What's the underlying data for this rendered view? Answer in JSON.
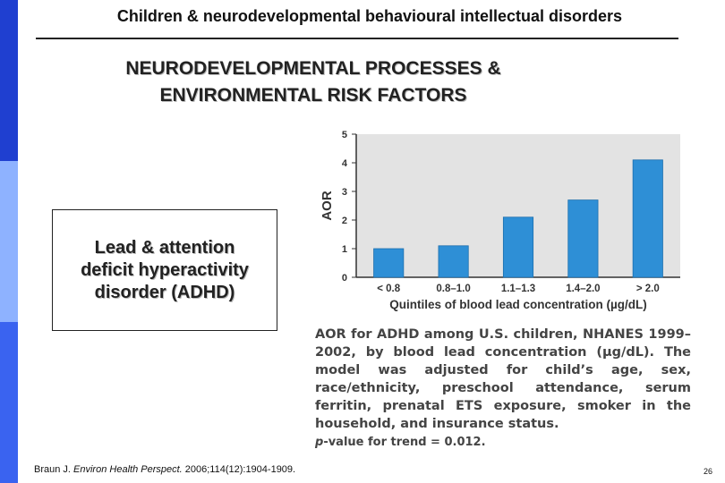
{
  "slide": {
    "header": "Children & neurodevelopmental behavioural intellectual disorders",
    "title_line1": "NEURODEVELOPMENTAL PROCESSES &",
    "title_line2": "ENVIRONMENTAL RISK FACTORS",
    "callout_line1": "Lead & attention",
    "callout_line2": "deficit hyperactivity",
    "callout_line3": "disorder (ADHD)",
    "citation_prefix": "Braun J. ",
    "citation_journal": "Environ Health Perspect.",
    "citation_suffix": " 2006;114(12):1904-1909.",
    "page_number": "26"
  },
  "caption": {
    "text": "AOR for ADHD among U.S. children, NHANES 1999–2002, by blood lead concentration (µg/dL). The model was adjusted for child’s age, sex, race/ethnicity, preschool attendance, serum ferritin, prenatal ETS exposure, smoker in the household, and insurance status.",
    "pvalue_prefix": "p",
    "pvalue_rest": "-value for trend = 0.012."
  },
  "chart_data": {
    "type": "bar",
    "categories": [
      "< 0.8",
      "0.8–1.0",
      "1.1–1.3",
      "1.4–2.0",
      "> 2.0"
    ],
    "values": [
      1.0,
      1.1,
      2.1,
      2.7,
      4.1
    ],
    "xlabel": "Quintiles of blood lead concentration (µg/dL)",
    "ylabel": "AOR",
    "ylim": [
      0,
      5
    ],
    "yticks": [
      "0",
      "1",
      "2",
      "3",
      "4",
      "5"
    ],
    "grid": false,
    "bar_color": "#2e8fd6",
    "panel_color": "#e3e3e3"
  }
}
